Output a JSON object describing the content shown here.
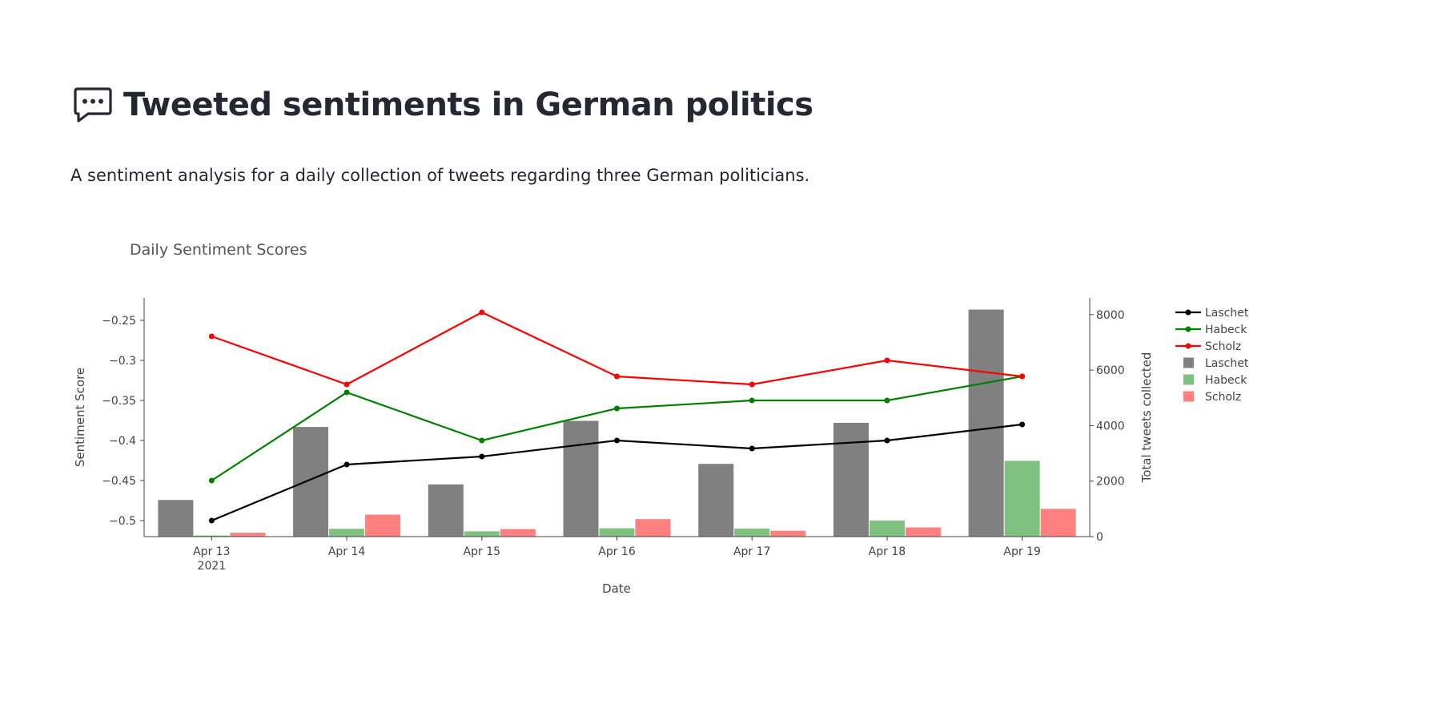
{
  "header": {
    "icon": "speech-bubble-icon",
    "title": "Tweeted sentiments in German politics",
    "subtitle": "A sentiment analysis for a daily collection of tweets regarding three German politicians."
  },
  "chart_data": {
    "type": "bar",
    "title": "Daily Sentiment Scores",
    "xlabel": "Date",
    "ylabel": "Sentiment Score",
    "y2label": "Total tweets collected",
    "categories": [
      "Apr 13",
      "Apr 14",
      "Apr 15",
      "Apr 16",
      "Apr 17",
      "Apr 18",
      "Apr 19"
    ],
    "x_year_label": "2021",
    "ylim": [
      -0.52,
      -0.222
    ],
    "yticks": [
      -0.25,
      -0.3,
      -0.35,
      -0.4,
      -0.45,
      -0.5
    ],
    "ytick_labels": [
      "−0.25",
      "−0.3",
      "−0.35",
      "−0.4",
      "−0.45",
      "−0.5"
    ],
    "y2lim": [
      0,
      8600
    ],
    "y2ticks": [
      0,
      2000,
      4000,
      6000,
      8000
    ],
    "y2tick_labels": [
      "0",
      "2000",
      "4000",
      "6000",
      "8000"
    ],
    "line_series": [
      {
        "name": "Laschet",
        "color": "#000000",
        "values": [
          -0.5,
          -0.43,
          -0.42,
          -0.4,
          -0.41,
          -0.4,
          -0.38
        ]
      },
      {
        "name": "Habeck",
        "color": "#008000",
        "values": [
          -0.45,
          -0.34,
          -0.4,
          -0.36,
          -0.35,
          -0.35,
          -0.32
        ]
      },
      {
        "name": "Scholz",
        "color": "#ff0000",
        "values": [
          -0.27,
          -0.33,
          -0.24,
          -0.32,
          -0.33,
          -0.3,
          -0.32
        ]
      }
    ],
    "bar_series": [
      {
        "name": "Laschet",
        "color": "#808080",
        "values": [
          1320,
          3950,
          1880,
          4170,
          2620,
          4100,
          8180
        ]
      },
      {
        "name": "Habeck",
        "color": "#80c080",
        "values": [
          40,
          280,
          190,
          300,
          290,
          580,
          2730
        ]
      },
      {
        "name": "Scholz",
        "color": "#ff8080",
        "values": [
          140,
          790,
          270,
          630,
          210,
          330,
          1000
        ]
      }
    ],
    "legend_position": "right",
    "grid": false
  }
}
